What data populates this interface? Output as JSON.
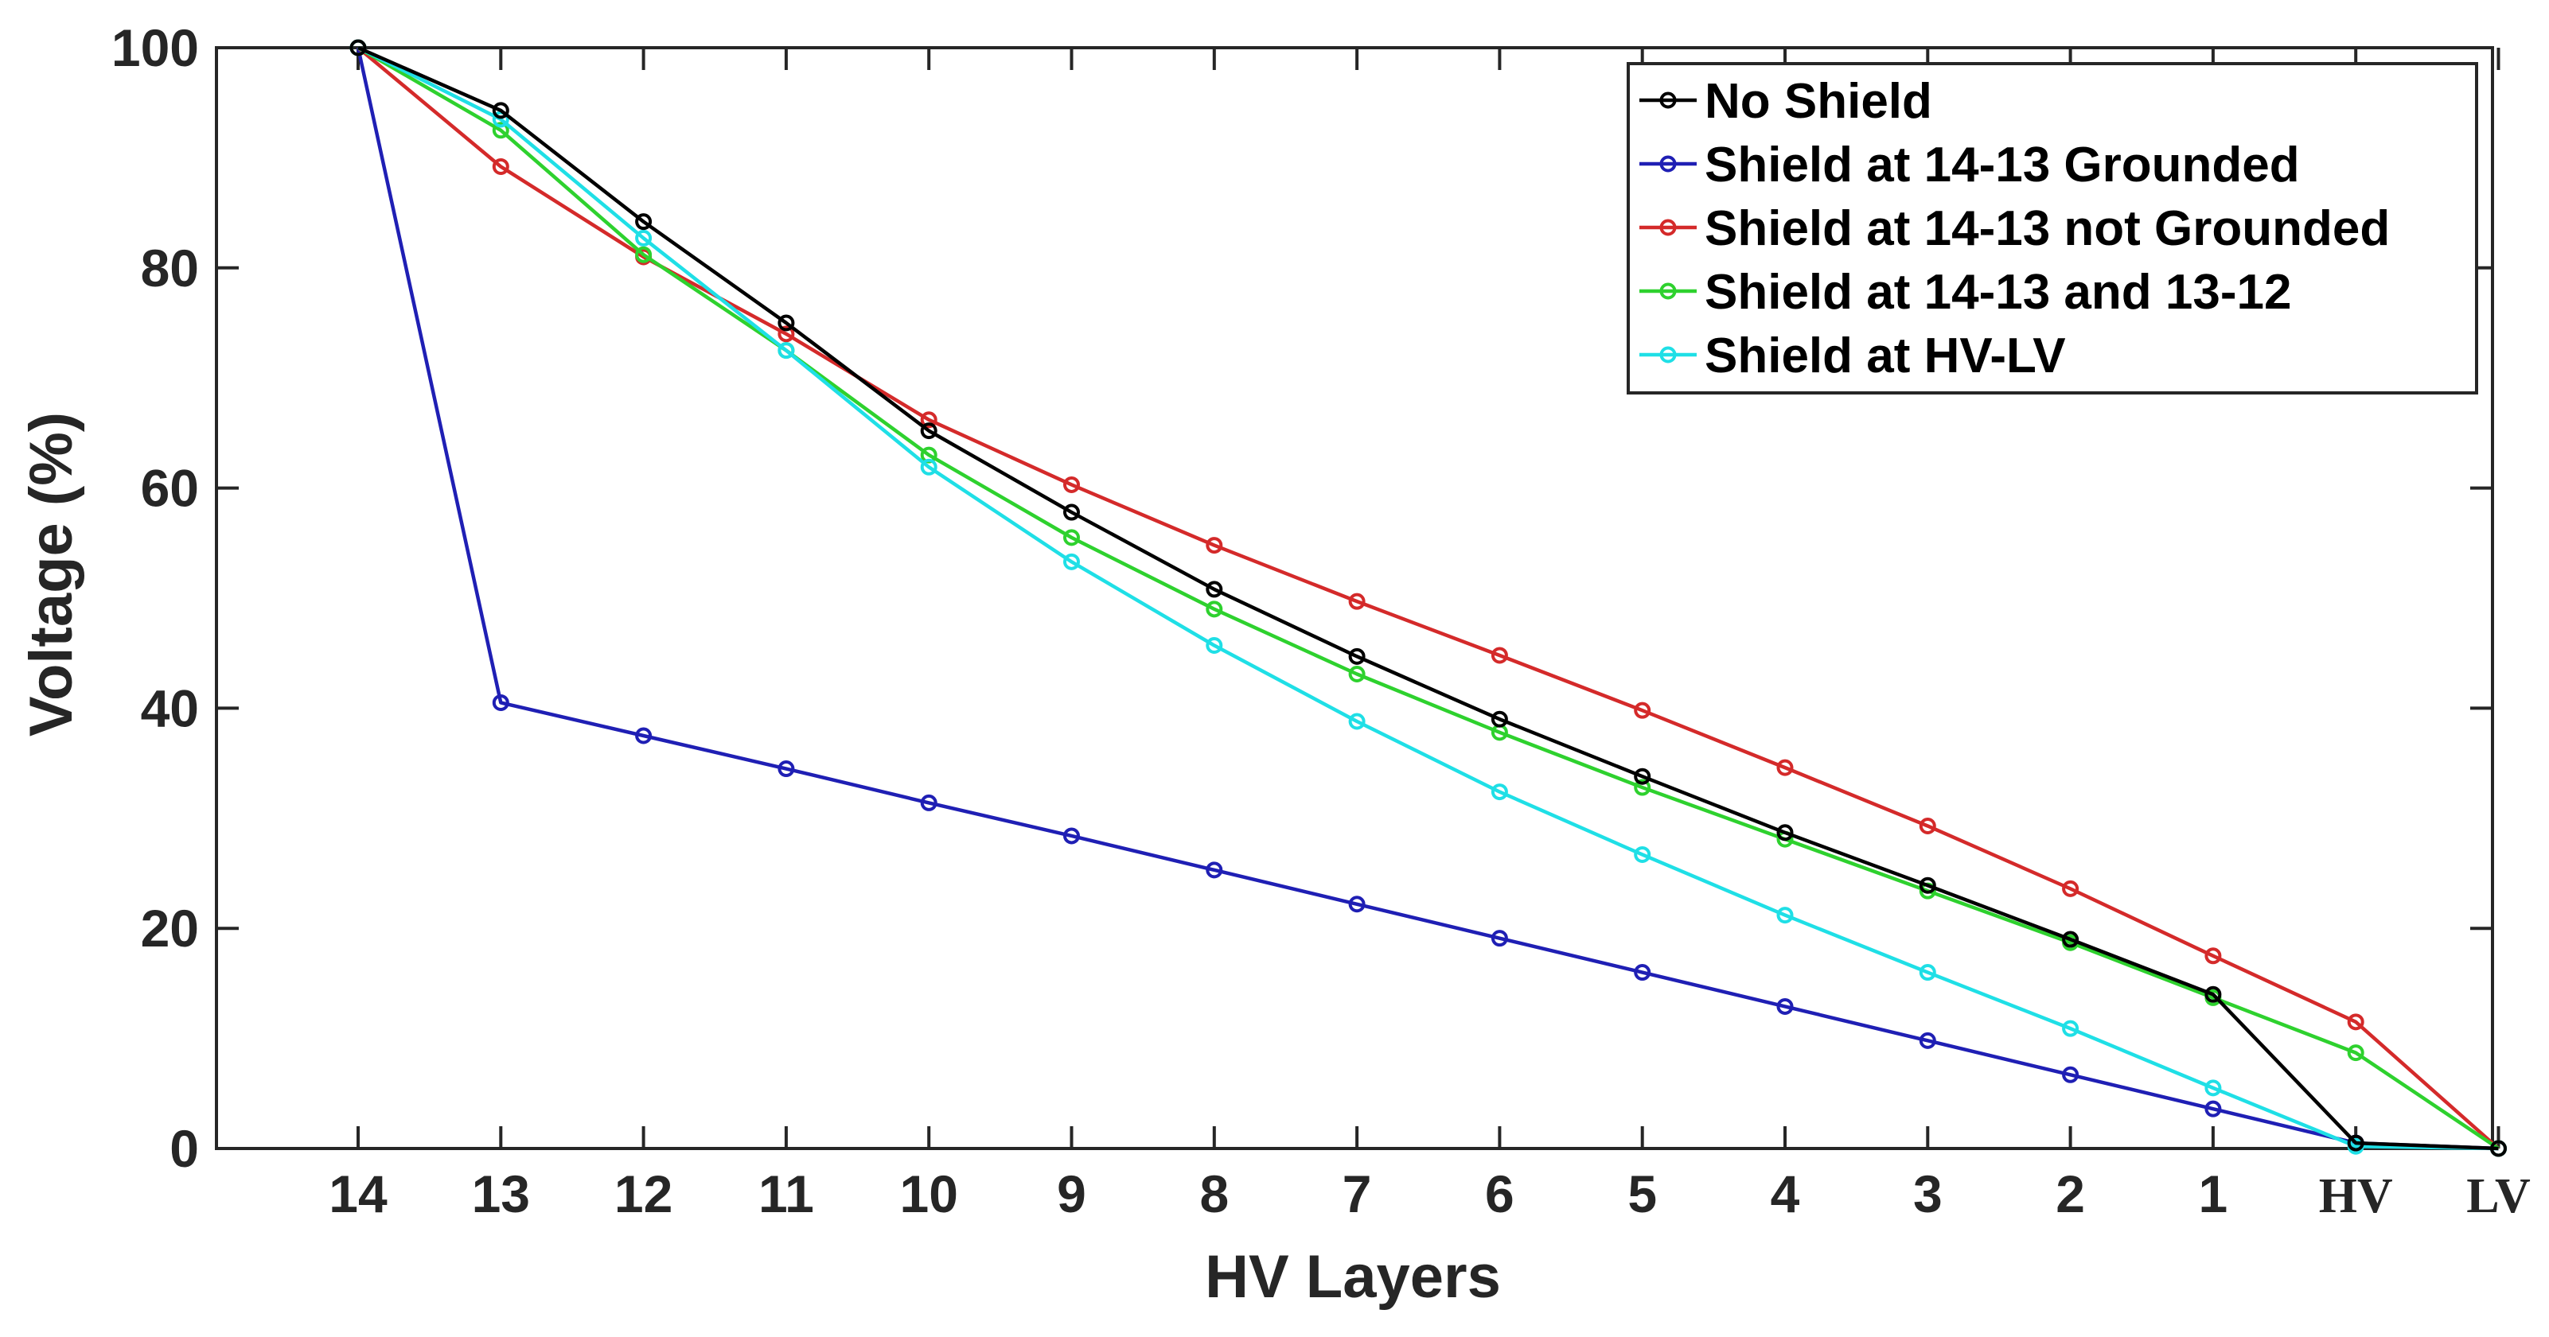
{
  "chart_data": {
    "type": "line",
    "title": "",
    "xlabel": "HV Layers",
    "ylabel": "Voltage (%)",
    "categories": [
      "14",
      "13",
      "12",
      "11",
      "10",
      "9",
      "8",
      "7",
      "6",
      "5",
      "4",
      "3",
      "2",
      "1",
      "HV",
      "LV"
    ],
    "ylim": [
      0,
      100
    ],
    "yticks": [
      "0",
      "20",
      "40",
      "60",
      "80",
      "100"
    ],
    "grid": false,
    "legend_position": "top-right",
    "series": [
      {
        "name": "No Shield",
        "color": "#000000",
        "values": [
          100,
          94.3,
          84.2,
          75.0,
          65.2,
          57.8,
          50.8,
          44.7,
          39.0,
          33.8,
          28.7,
          23.9,
          19.0,
          14.0,
          0.5,
          0
        ]
      },
      {
        "name": "Shield at 14-13 Grounded",
        "color": "#1f1fb4",
        "values": [
          100,
          40.5,
          37.5,
          34.5,
          31.4,
          28.4,
          25.3,
          22.2,
          19.1,
          16.0,
          12.9,
          9.8,
          6.7,
          3.6,
          0.5,
          0
        ]
      },
      {
        "name": "Shield at 14-13 not Grounded",
        "color": "#d42a2a",
        "values": [
          100,
          89.2,
          81.0,
          74.0,
          66.2,
          60.3,
          54.8,
          49.7,
          44.8,
          39.8,
          34.6,
          29.3,
          23.6,
          17.5,
          11.5,
          0
        ]
      },
      {
        "name": "Shield at 14-13 and 13-12",
        "color": "#2ed12e",
        "values": [
          100,
          92.5,
          81.2,
          72.5,
          63.0,
          55.5,
          49.0,
          43.1,
          37.8,
          32.8,
          28.1,
          23.4,
          18.7,
          13.7,
          8.7,
          0
        ]
      },
      {
        "name": "Shield at HV-LV",
        "color": "#1fdfe6",
        "values": [
          100,
          93.5,
          82.7,
          72.5,
          61.9,
          53.3,
          45.7,
          38.8,
          32.4,
          26.7,
          21.2,
          16.0,
          10.9,
          5.5,
          0.2,
          0
        ]
      }
    ]
  }
}
